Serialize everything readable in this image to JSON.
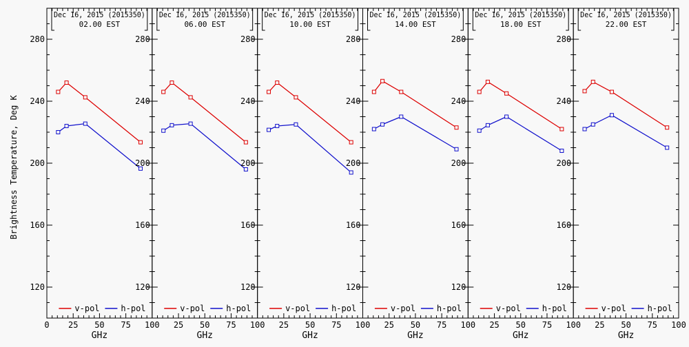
{
  "figure": {
    "background": "#f8f8f8",
    "axis_color": "#000000",
    "ylabel": "Brightness Temperature, Deg K",
    "xlabel": "GHz",
    "legend": {
      "vpol_label": "v-pol",
      "hpol_label": "h-pol"
    },
    "colors": {
      "vpol": "#dd0000",
      "hpol": "#1111cc"
    }
  },
  "chart_data": {
    "type": "line",
    "x": [
      10.7,
      18.7,
      36.5,
      89
    ],
    "x_unit": "GHz",
    "xlabel": "GHz",
    "ylabel": "Brightness Temperature, Deg K",
    "xlim": [
      0,
      100
    ],
    "ylim": [
      100,
      300
    ],
    "x_major_ticks": [
      0,
      25,
      50,
      75,
      100
    ],
    "x_minor_step": 5,
    "y_major_ticks": [
      120,
      160,
      200,
      240,
      280
    ],
    "y_minor_step": 10,
    "x_tick_labels_all_panels": [
      "25",
      "50",
      "75",
      "100"
    ],
    "x_tick_label_first_panel_only": "0",
    "grid": false,
    "legend_position": "bottom-inside",
    "marker": "open-square",
    "panels": [
      {
        "title_line1": "Dec 16, 2015 (2015350)",
        "title_line2": "02.00 EST",
        "series": [
          {
            "name": "v-pol",
            "color": "#dd0000",
            "values": [
              246,
              252,
              242.5,
              213.5
            ]
          },
          {
            "name": "h-pol",
            "color": "#1111cc",
            "values": [
              220,
              224,
              225.5,
              196.5
            ]
          }
        ]
      },
      {
        "title_line1": "Dec 16, 2015 (2015350)",
        "title_line2": "06.00 EST",
        "series": [
          {
            "name": "v-pol",
            "color": "#dd0000",
            "values": [
              246,
              252,
              242.5,
              213.5
            ]
          },
          {
            "name": "h-pol",
            "color": "#1111cc",
            "values": [
              221,
              224.5,
              225.5,
              196
            ]
          }
        ]
      },
      {
        "title_line1": "Dec 16, 2015 (2015350)",
        "title_line2": "10.00 EST",
        "series": [
          {
            "name": "v-pol",
            "color": "#dd0000",
            "values": [
              246,
              252,
              242.5,
              213.5
            ]
          },
          {
            "name": "h-pol",
            "color": "#1111cc",
            "values": [
              221.5,
              224,
              225,
              194
            ]
          }
        ]
      },
      {
        "title_line1": "Dec 16, 2015 (2015350)",
        "title_line2": "14.00 EST",
        "series": [
          {
            "name": "v-pol",
            "color": "#dd0000",
            "values": [
              246,
              253,
              246,
              223
            ]
          },
          {
            "name": "h-pol",
            "color": "#1111cc",
            "values": [
              222,
              225,
              230,
              209
            ]
          }
        ]
      },
      {
        "title_line1": "Dec 16, 2015 (2015350)",
        "title_line2": "18.00 EST",
        "series": [
          {
            "name": "v-pol",
            "color": "#dd0000",
            "values": [
              246,
              252.5,
              245,
              222
            ]
          },
          {
            "name": "h-pol",
            "color": "#1111cc",
            "values": [
              221,
              224.5,
              230,
              208
            ]
          }
        ]
      },
      {
        "title_line1": "Dec 16, 2015 (2015350)",
        "title_line2": "22.00 EST",
        "series": [
          {
            "name": "v-pol",
            "color": "#dd0000",
            "values": [
              246.5,
              252.5,
              246,
              223
            ]
          },
          {
            "name": "h-pol",
            "color": "#1111cc",
            "values": [
              222,
              225,
              231,
              210
            ]
          }
        ]
      }
    ]
  }
}
